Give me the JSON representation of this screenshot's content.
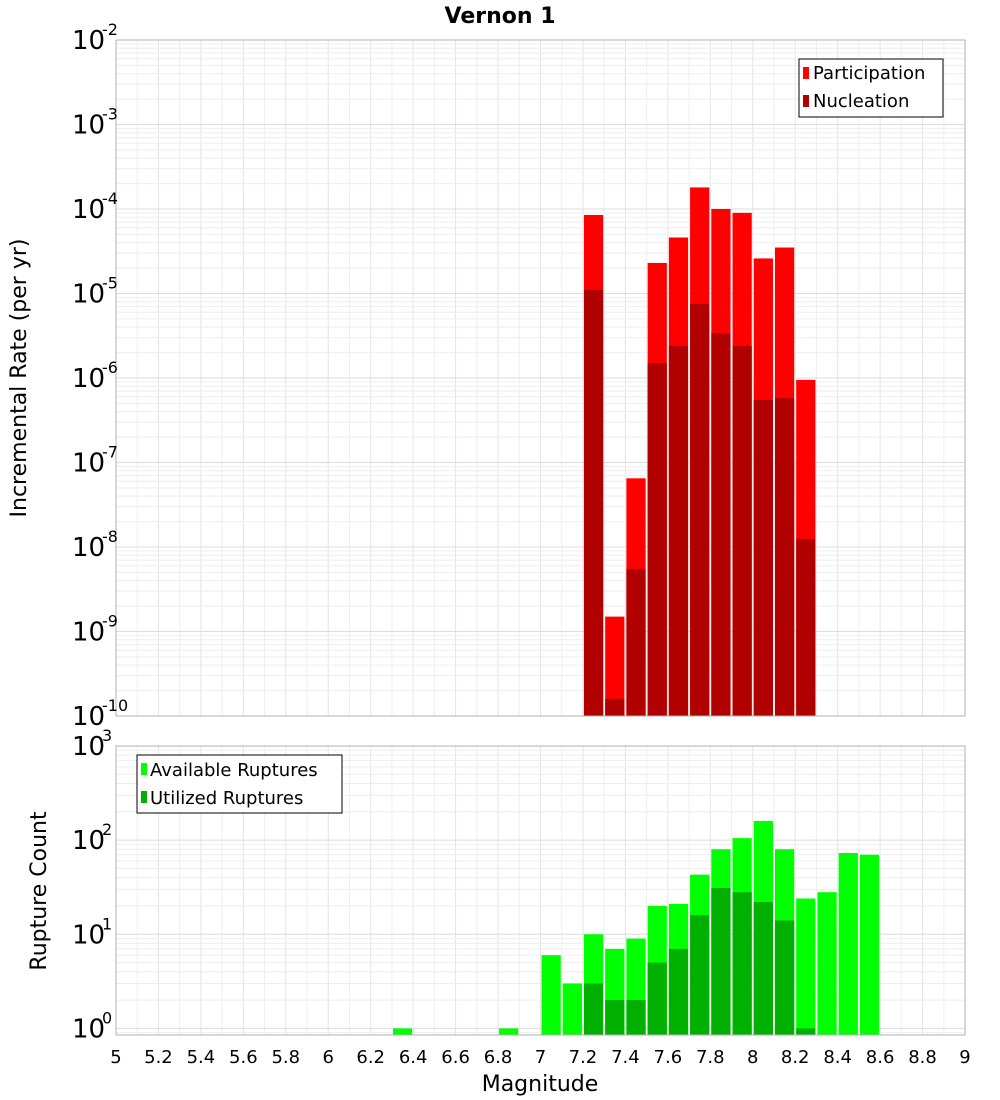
{
  "chart_data": [
    {
      "type": "bar",
      "title": "Vernon 1",
      "ylabel": "Incremental Rate (per yr)",
      "xlabel": "Magnitude",
      "y_scale": "log",
      "ylim_exp": [
        -10,
        -2
      ],
      "xlim": [
        5,
        9
      ],
      "bin_width": 0.1,
      "x": [
        7.25,
        7.35,
        7.45,
        7.55,
        7.65,
        7.75,
        7.85,
        7.95,
        8.05,
        8.15,
        8.25
      ],
      "series": [
        {
          "name": "Participation",
          "color": "#ff0000",
          "values": [
            8.5e-05,
            1.5e-09,
            6.5e-08,
            2.3e-05,
            4.6e-05,
            0.00018,
            0.0001,
            9e-05,
            2.6e-05,
            3.5e-05,
            9.5e-07
          ]
        },
        {
          "name": "Nucleation",
          "color": "#b00000",
          "values": [
            1.1e-05,
            1.6e-10,
            5.5e-09,
            1.5e-06,
            2.4e-06,
            7.5e-06,
            3.4e-06,
            2.4e-06,
            5.5e-07,
            5.8e-07,
            1.25e-08
          ]
        }
      ],
      "y_ticks": [
        {
          "base": "10",
          "exp": "-10",
          "value": -10
        },
        {
          "base": "10",
          "exp": "-9",
          "value": -9
        },
        {
          "base": "10",
          "exp": "-8",
          "value": -8
        },
        {
          "base": "10",
          "exp": "-7",
          "value": -7
        },
        {
          "base": "10",
          "exp": "-6",
          "value": -6
        },
        {
          "base": "10",
          "exp": "-5",
          "value": -5
        },
        {
          "base": "10",
          "exp": "-4",
          "value": -4
        },
        {
          "base": "10",
          "exp": "-3",
          "value": -3
        },
        {
          "base": "10",
          "exp": "-2",
          "value": -2
        }
      ],
      "legend": "top-right"
    },
    {
      "type": "bar",
      "ylabel": "Rupture Count",
      "xlabel": "Magnitude",
      "y_scale": "log",
      "ylim_exp": [
        -0.07,
        3
      ],
      "xlim": [
        5,
        9
      ],
      "bin_width": 0.1,
      "x": [
        6.35,
        6.85,
        7.05,
        7.15,
        7.25,
        7.35,
        7.45,
        7.55,
        7.65,
        7.75,
        7.85,
        7.95,
        8.05,
        8.15,
        8.25,
        8.35,
        8.45,
        8.55
      ],
      "series": [
        {
          "name": "Available Ruptures",
          "color": "#00ff00",
          "values": [
            1,
            1,
            6,
            3,
            10,
            7,
            9,
            20,
            21,
            43,
            80,
            105,
            160,
            80,
            24,
            28,
            73,
            70
          ]
        },
        {
          "name": "Utilized Ruptures",
          "color": "#00b000",
          "values": [
            0,
            0,
            0,
            0,
            3,
            2,
            2,
            5,
            7,
            16,
            31,
            28,
            22,
            14,
            1,
            0,
            0,
            0
          ]
        }
      ],
      "y_ticks": [
        {
          "base": "10",
          "exp": "0",
          "value": 0
        },
        {
          "base": "10",
          "exp": "1",
          "value": 1
        },
        {
          "base": "10",
          "exp": "2",
          "value": 2
        },
        {
          "base": "10",
          "exp": "3",
          "value": 3
        }
      ],
      "x_ticks": [
        "5",
        "5.2",
        "5.4",
        "5.6",
        "5.8",
        "6",
        "6.2",
        "6.4",
        "6.6",
        "6.8",
        "7",
        "7.2",
        "7.4",
        "7.6",
        "7.8",
        "8",
        "8.2",
        "8.4",
        "8.6",
        "8.8",
        "9"
      ],
      "legend": "top-left"
    }
  ]
}
